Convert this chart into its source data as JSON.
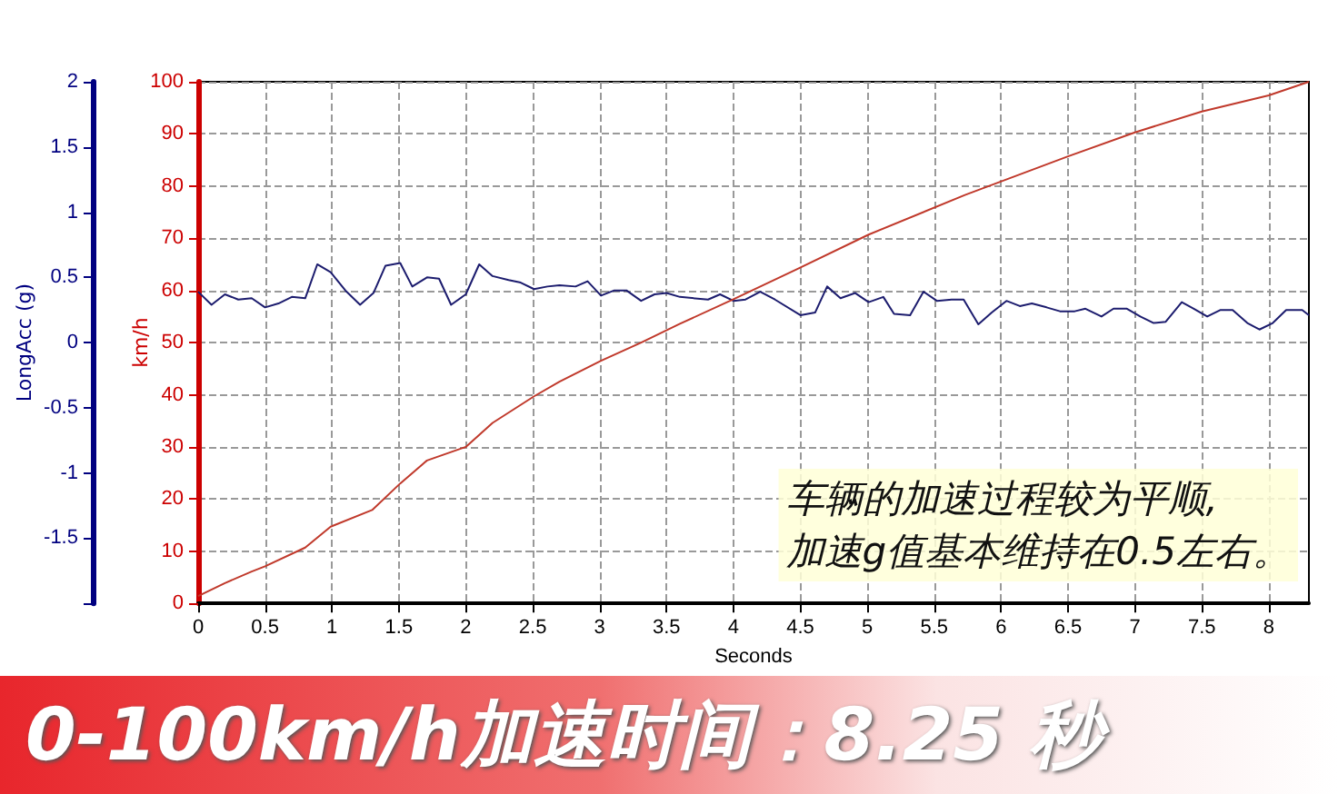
{
  "chart_data": {
    "type": "line",
    "xlabel": "Seconds",
    "ylabel": "LongAcc (g)",
    "y2label": "km/h",
    "annotations": [
      "车辆的加速过程较为平顺,\n加速g值基本维持在0.5左右。",
      "0-100km/h加速时间：8.25 秒"
    ],
    "series": [
      {
        "color": "#1c1c6e",
        "axis": "y",
        "x": [
          0,
          0.1,
          0.2,
          0.3,
          0.4,
          0.5,
          0.6,
          0.7,
          0.8,
          0.89,
          0.99,
          1.1,
          1.21,
          1.31,
          1.4,
          1.51,
          1.6,
          1.71,
          1.8,
          1.89,
          2.0,
          2.1,
          2.2,
          2.32,
          2.41,
          2.51,
          2.61,
          2.7,
          2.82,
          2.91,
          3.01,
          3.11,
          3.2,
          3.31,
          3.41,
          3.5,
          3.6,
          3.81,
          3.9,
          4.0,
          4.09,
          4.2,
          4.31,
          4.5,
          4.61,
          4.7,
          4.8,
          4.91,
          5.01,
          5.12,
          5.2,
          5.32,
          5.42,
          5.52,
          5.63,
          5.72,
          5.83,
          5.93,
          6.04,
          6.14,
          6.23,
          6.34,
          6.44,
          6.55,
          6.63,
          6.75,
          6.84,
          6.94,
          7.04,
          7.14,
          7.23,
          7.35,
          7.44,
          7.54,
          7.64,
          7.73,
          7.84,
          7.93,
          8.03,
          8.13,
          8.25,
          8.3
        ],
        "values": [
          0.39,
          0.29,
          0.37,
          0.33,
          0.34,
          0.27,
          0.3,
          0.35,
          0.34,
          0.6,
          0.54,
          0.4,
          0.29,
          0.38,
          0.59,
          0.61,
          0.43,
          0.5,
          0.49,
          0.29,
          0.37,
          0.6,
          0.51,
          0.48,
          0.46,
          0.41,
          0.43,
          0.44,
          0.43,
          0.47,
          0.36,
          0.4,
          0.4,
          0.32,
          0.37,
          0.38,
          0.35,
          0.33,
          0.37,
          0.32,
          0.33,
          0.39,
          0.33,
          0.21,
          0.23,
          0.43,
          0.34,
          0.38,
          0.31,
          0.35,
          0.22,
          0.21,
          0.39,
          0.32,
          0.33,
          0.33,
          0.14,
          0.23,
          0.32,
          0.28,
          0.3,
          0.27,
          0.24,
          0.24,
          0.26,
          0.2,
          0.26,
          0.26,
          0.2,
          0.15,
          0.16,
          0.31,
          0.26,
          0.2,
          0.25,
          0.25,
          0.15,
          0.1,
          0.15,
          0.25,
          0.25,
          0.21
        ]
      },
      {
        "color": "#c0392b",
        "axis": "y2",
        "x": [
          0,
          0.2,
          0.4,
          0.5,
          0.8,
          0.99,
          1.3,
          1.51,
          1.71,
          2.0,
          2.2,
          2.51,
          2.7,
          3.01,
          3.31,
          3.6,
          4.0,
          4.47,
          5.01,
          5.73,
          6.5,
          7.0,
          7.5,
          8.0,
          8.3
        ],
        "values": [
          1.4,
          3.9,
          6.1,
          7.1,
          10.7,
          14.7,
          17.9,
          23,
          27.4,
          30,
          34.6,
          39.7,
          42.5,
          46.5,
          50,
          53.6,
          58.3,
          64,
          70.7,
          78.3,
          85.7,
          90.3,
          94.3,
          97.4,
          100
        ]
      }
    ],
    "xlim": [
      0,
      8.3
    ],
    "xticks": [
      0,
      0.5,
      1,
      1.5,
      2,
      2.5,
      3,
      3.5,
      4,
      4.5,
      5,
      5.5,
      6,
      6.5,
      7,
      7.5,
      8
    ],
    "ylim": [
      -2,
      2
    ],
    "yticks": [
      {
        "value": -2,
        "label": null
      },
      -1.5,
      -1,
      -0.5,
      0,
      0.5,
      1,
      1.5,
      2
    ],
    "y2lim": [
      0,
      100
    ],
    "y2ticks": [
      0,
      10,
      20,
      30,
      40,
      50,
      60,
      70,
      80,
      90,
      100
    ],
    "grid": true,
    "marker": "none",
    "line_style": "solid"
  }
}
